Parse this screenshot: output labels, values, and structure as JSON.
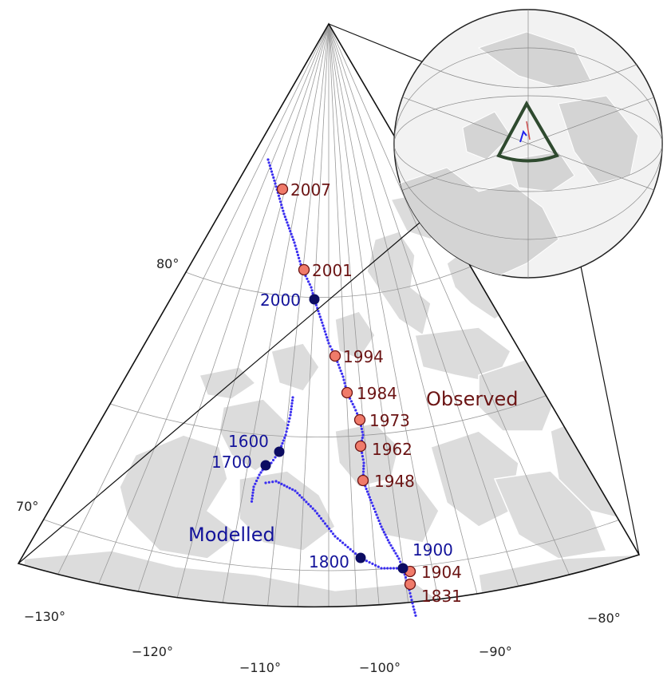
{
  "legend": {
    "observed": "Observed",
    "modelled": "Modelled"
  },
  "colors": {
    "observed_marker": "#f07b6a",
    "observed_text": "#6b1414",
    "modelled_marker": "#0c0c62",
    "modelled_track": "#3a2ef0",
    "modelled_text": "#13139a",
    "land": "#dcdcdc",
    "inset_outline": "#2f4a2f"
  },
  "observed_points": [
    {
      "year": "2007",
      "lon": -109.0,
      "lat": 83.9
    },
    {
      "year": "2001",
      "lon": -107.7,
      "lat": 81.0
    },
    {
      "year": "1994",
      "lon": -104.7,
      "lat": 78.3
    },
    {
      "year": "1984",
      "lon": -103.6,
      "lat": 77.3
    },
    {
      "year": "1973",
      "lon": -102.3,
      "lat": 76.3
    },
    {
      "year": "1962",
      "lon": -101.6,
      "lat": 75.3
    },
    {
      "year": "1948",
      "lon": -101.0,
      "lat": 73.9
    },
    {
      "year": "1904",
      "lon": -95.5,
      "lat": 70.5
    },
    {
      "year": "1831",
      "lon": -96.6,
      "lat": 70.1
    }
  ],
  "modelled_points": [
    {
      "year": "2000",
      "lon": -105.6,
      "lat": 79.9
    },
    {
      "year": "1600",
      "lon": -108.9,
      "lat": 75.4
    },
    {
      "year": "1700",
      "lon": -109.9,
      "lat": 74.7
    },
    {
      "year": "1800",
      "lon": -100.9,
      "lat": 71.2
    },
    {
      "year": "1900",
      "lon": -96.8,
      "lat": 70.6
    }
  ],
  "grid_labels": {
    "lat": [
      "80°",
      "70°"
    ],
    "lon": [
      "−130°",
      "−120°",
      "−110°",
      "−100°",
      "−90°",
      "−80°"
    ]
  }
}
